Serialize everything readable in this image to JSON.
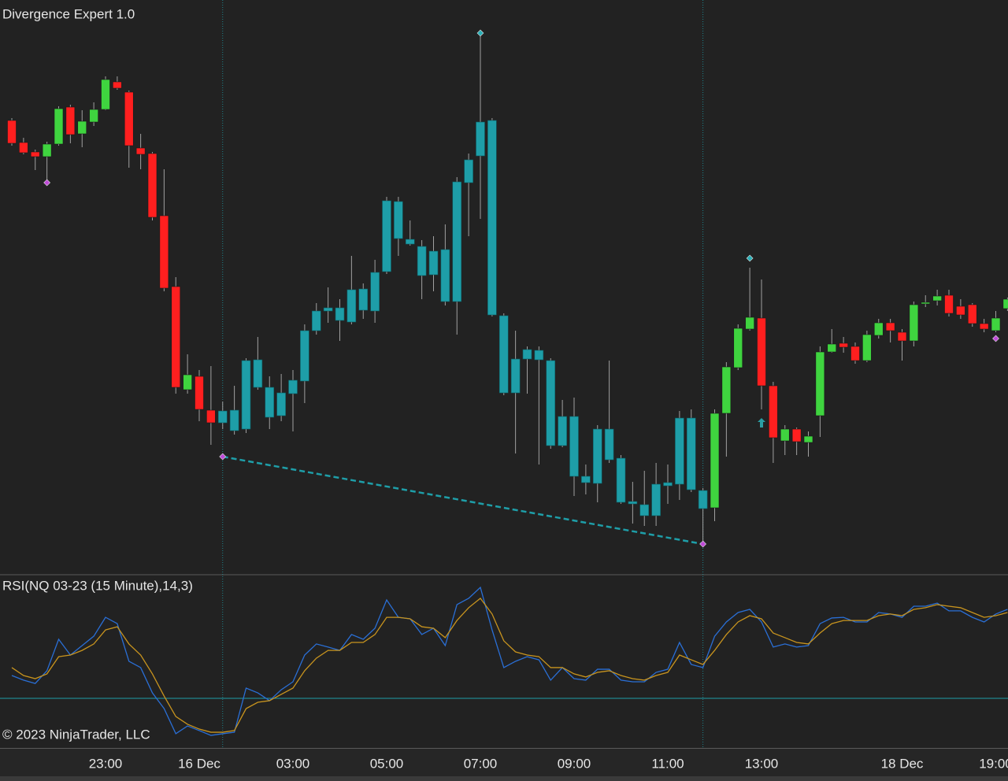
{
  "chart_data": [
    {
      "type": "candlestick",
      "title": "Divergence Expert 1.0",
      "categories": [
        null,
        null,
        null,
        null,
        null,
        null,
        null,
        null,
        "23:00",
        null,
        null,
        null,
        null,
        null,
        null,
        null,
        "16 Dec",
        null,
        null,
        null,
        null,
        null,
        null,
        null,
        "03:00",
        null,
        null,
        null,
        null,
        null,
        null,
        null,
        "05:00",
        null,
        null,
        null,
        null,
        null,
        null,
        null,
        "07:00",
        null,
        null,
        null,
        null,
        null,
        null,
        null,
        "09:00",
        null,
        null,
        null,
        null,
        null,
        null,
        null,
        "11:00",
        null,
        null,
        null,
        null,
        null,
        null,
        null,
        "13:00",
        null,
        null,
        null,
        null,
        null,
        null,
        null,
        null,
        null,
        null,
        null,
        "18 Dec",
        null,
        null,
        null,
        null,
        null,
        null,
        null,
        "19:00",
        null
      ],
      "open": [
        847,
        819,
        807,
        801,
        817,
        864,
        830,
        845,
        861,
        896,
        883,
        812,
        805,
        726,
        636,
        505,
        522,
        479,
        463,
        479,
        455,
        543,
        508,
        472,
        500,
        516,
        580,
        605,
        609,
        591,
        633,
        605,
        655,
        744,
        696,
        687,
        651,
        683,
        617,
        768,
        802,
        847,
        599,
        501,
        556,
        555,
        542,
        434,
        471,
        395,
        386,
        455,
        418,
        363,
        359,
        345,
        383,
        385,
        469,
        377,
        355,
        475,
        533,
        582,
        596,
        510,
        440,
        455,
        438,
        472,
        553,
        564,
        560,
        542,
        574,
        590,
        578,
        567,
        614,
        618,
        625,
        611,
        613,
        589,
        580,
        608
      ],
      "high": [
        850,
        825,
        810,
        820,
        865,
        867,
        860,
        870,
        903,
        903,
        885,
        830,
        807,
        785,
        648,
        550,
        530,
        535,
        490,
        510,
        545,
        572,
        522,
        525,
        530,
        588,
        615,
        635,
        620,
        675,
        640,
        670,
        750,
        750,
        720,
        695,
        700,
        715,
        775,
        805,
        958,
        850,
        602,
        580,
        560,
        560,
        545,
        492,
        495,
        410,
        460,
        542,
        422,
        388,
        402,
        412,
        410,
        478,
        480,
        380,
        480,
        540,
        588,
        660,
        645,
        515,
        460,
        457,
        452,
        560,
        582,
        572,
        565,
        580,
        595,
        595,
        582,
        617,
        625,
        632,
        632,
        620,
        615,
        595,
        605,
        622
      ],
      "low": [
        815,
        804,
        784,
        772,
        815,
        818,
        813,
        840,
        860,
        886,
        787,
        785,
        720,
        630,
        500,
        500,
        465,
        435,
        455,
        448,
        450,
        505,
        455,
        465,
        452,
        488,
        575,
        590,
        567,
        588,
        595,
        590,
        652,
        675,
        688,
        620,
        630,
        612,
        575,
        700,
        722,
        598,
        498,
        424,
        500,
        410,
        430,
        432,
        370,
        372,
        362,
        412,
        360,
        335,
        332,
        332,
        360,
        365,
        375,
        310,
        338,
        420,
        530,
        580,
        480,
        412,
        422,
        422,
        420,
        445,
        552,
        552,
        538,
        540,
        570,
        565,
        542,
        560,
        610,
        612,
        598,
        595,
        585,
        578,
        578,
        605
      ],
      "close": [
        818,
        806,
        801,
        817,
        862,
        829,
        846,
        861,
        899,
        888,
        815,
        804,
        724,
        634,
        508,
        524,
        480,
        463,
        478,
        453,
        542,
        508,
        470,
        501,
        517,
        580,
        605,
        609,
        593,
        632,
        606,
        654,
        745,
        697,
        690,
        650,
        681,
        617,
        769,
        797,
        845,
        600,
        501,
        544,
        544,
        543,
        434,
        471,
        395,
        387,
        455,
        416,
        362,
        360,
        345,
        385,
        387,
        469,
        378,
        354,
        475,
        534,
        583,
        597,
        510,
        444,
        455,
        439,
        446,
        553,
        563,
        559,
        542,
        575,
        590,
        580,
        567,
        613,
        616,
        624,
        602,
        600,
        589,
        582,
        596,
        620
      ],
      "ylim": [
        270,
        1000
      ],
      "up_color": "#3fd43f",
      "down_color": "#ff1f1f",
      "wick_color": "#a0a0a0",
      "divergence_bars": [
        18,
        59
      ],
      "divergence_color": "#1e9ea8",
      "markers": [
        {
          "index": 3,
          "value": 768,
          "color": "#c04ad8"
        },
        {
          "index": 18,
          "value": 420,
          "color": "#c04ad8"
        },
        {
          "index": 59,
          "value": 309,
          "color": "#c04ad8"
        },
        {
          "index": 84,
          "value": 570,
          "color": "#c04ad8"
        },
        {
          "index": 40,
          "value": 958,
          "color": "#2ab0b8"
        },
        {
          "index": 63,
          "value": 672,
          "color": "#2ab0b8"
        }
      ],
      "signal_arrows": [
        {
          "index": 64,
          "value": 463,
          "color": "#2a9ea4"
        }
      ]
    },
    {
      "type": "line",
      "title": "RSI(NQ 03-23 (15 Minute),14,3)",
      "series": [
        {
          "color": "#2a6fd6",
          "values": [
            43.8,
            41,
            39,
            46.7,
            65.7,
            56.2,
            61.9,
            67.6,
            79,
            75.2,
            52.4,
            48.6,
            33.3,
            23.8,
            8.6,
            13.3,
            10.5,
            7.6,
            8.6,
            9.5,
            36.2,
            33.3,
            28.6,
            35.2,
            40,
            56.2,
            62.9,
            61,
            59,
            68.6,
            65.7,
            72.4,
            89.5,
            79,
            78.1,
            68.6,
            72.4,
            61.9,
            86.7,
            90.5,
            97.1,
            71.4,
            48.6,
            52.4,
            55.2,
            53.3,
            41,
            48.6,
            41.9,
            41,
            47.6,
            47.6,
            41,
            40,
            40,
            45.7,
            47.6,
            63.8,
            50.5,
            48.6,
            67.6,
            76.2,
            81.9,
            83.8,
            76.2,
            61,
            62.9,
            61,
            61.9,
            75.2,
            78.6,
            79,
            76.2,
            76.2,
            81.9,
            81,
            79,
            85.7,
            85.7,
            87.6,
            82.9,
            82.9,
            79,
            76.2,
            81,
            83.8
          ]
        },
        {
          "color": "#c8941e",
          "values": [
            48.6,
            43.8,
            41.9,
            44.8,
            55.2,
            56.2,
            59,
            62.9,
            71.4,
            73.3,
            62.9,
            56.2,
            44.8,
            31.4,
            19,
            14.3,
            11.4,
            9.5,
            9.5,
            10.5,
            23.8,
            27.6,
            28.6,
            32.4,
            36.2,
            46.7,
            54.3,
            59,
            59,
            63.8,
            63.8,
            68.6,
            79,
            79,
            78.1,
            73.3,
            72.4,
            66.7,
            77.1,
            84.8,
            90.5,
            81,
            64.8,
            58.1,
            56.2,
            55.2,
            48.6,
            48.6,
            44.8,
            42.9,
            45.7,
            46.7,
            43.8,
            41.9,
            41,
            43.8,
            45.7,
            56.2,
            53.3,
            50.5,
            59,
            68.6,
            76.2,
            80,
            78.1,
            69.5,
            66.7,
            63.8,
            62.9,
            69.5,
            75.2,
            77.1,
            77.1,
            77.1,
            80,
            81,
            80,
            83.8,
            84.8,
            86.7,
            85.7,
            84.8,
            81.9,
            79,
            80,
            81.9
          ]
        }
      ],
      "ylim": [
        0,
        100
      ],
      "reference_line": 30,
      "reference_color": "#1e9ea8"
    }
  ],
  "copyright": "© 2023 NinjaTrader, LLC"
}
